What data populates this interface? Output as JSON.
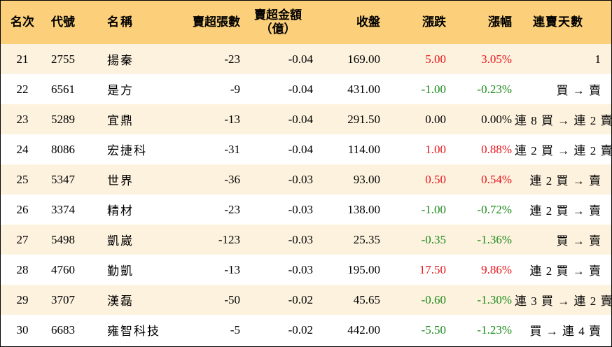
{
  "headers": {
    "rank": "名次",
    "code": "代號",
    "name": "名稱",
    "sell_volume": "賣超張數",
    "sell_amount_line1": "賣超金額",
    "sell_amount_line2": "（億）",
    "close": "收盤",
    "change": "漲跌",
    "change_pct": "漲幅",
    "streak": "連賣天數"
  },
  "colors": {
    "header_bg": "#fcd07a",
    "odd_row_bg": "#fdf2de",
    "even_row_bg": "#ffffff",
    "up": "#e8141c",
    "down": "#1a8a1a"
  },
  "rows": [
    {
      "rank": "21",
      "code": "2755",
      "name": "揚秦",
      "sell_volume": "-23",
      "sell_amount": "-0.04",
      "close": "169.00",
      "change": "5.00",
      "change_pct": "3.05%",
      "dir": "up",
      "streak": "1"
    },
    {
      "rank": "22",
      "code": "6561",
      "name": "是方",
      "sell_volume": "-9",
      "sell_amount": "-0.04",
      "close": "431.00",
      "change": "-1.00",
      "change_pct": "-0.23%",
      "dir": "down",
      "streak": "買 → 賣"
    },
    {
      "rank": "23",
      "code": "5289",
      "name": "宜鼎",
      "sell_volume": "-13",
      "sell_amount": "-0.04",
      "close": "291.50",
      "change": "0.00",
      "change_pct": "0.00%",
      "dir": "flat",
      "streak": "連 8 買 → 連 2 賣"
    },
    {
      "rank": "24",
      "code": "8086",
      "name": "宏捷科",
      "sell_volume": "-31",
      "sell_amount": "-0.04",
      "close": "114.00",
      "change": "1.00",
      "change_pct": "0.88%",
      "dir": "up",
      "streak": "連 2 買 → 連 2 賣"
    },
    {
      "rank": "25",
      "code": "5347",
      "name": "世界",
      "sell_volume": "-36",
      "sell_amount": "-0.03",
      "close": "93.00",
      "change": "0.50",
      "change_pct": "0.54%",
      "dir": "up",
      "streak": "連 2 買 → 賣"
    },
    {
      "rank": "26",
      "code": "3374",
      "name": "精材",
      "sell_volume": "-23",
      "sell_amount": "-0.03",
      "close": "138.00",
      "change": "-1.00",
      "change_pct": "-0.72%",
      "dir": "down",
      "streak": "連 2 買 → 賣"
    },
    {
      "rank": "27",
      "code": "5498",
      "name": "凱崴",
      "sell_volume": "-123",
      "sell_amount": "-0.03",
      "close": "25.35",
      "change": "-0.35",
      "change_pct": "-1.36%",
      "dir": "down",
      "streak": "買 → 賣"
    },
    {
      "rank": "28",
      "code": "4760",
      "name": "勤凱",
      "sell_volume": "-13",
      "sell_amount": "-0.03",
      "close": "195.00",
      "change": "17.50",
      "change_pct": "9.86%",
      "dir": "up",
      "streak": "連 2 買 → 賣"
    },
    {
      "rank": "29",
      "code": "3707",
      "name": "漢磊",
      "sell_volume": "-50",
      "sell_amount": "-0.02",
      "close": "45.65",
      "change": "-0.60",
      "change_pct": "-1.30%",
      "dir": "down",
      "streak": "連 3 買 → 連 2 賣"
    },
    {
      "rank": "30",
      "code": "6683",
      "name": "雍智科技",
      "sell_volume": "-5",
      "sell_amount": "-0.02",
      "close": "442.00",
      "change": "-5.50",
      "change_pct": "-1.23%",
      "dir": "down",
      "streak": "買 → 連 4 賣"
    }
  ]
}
